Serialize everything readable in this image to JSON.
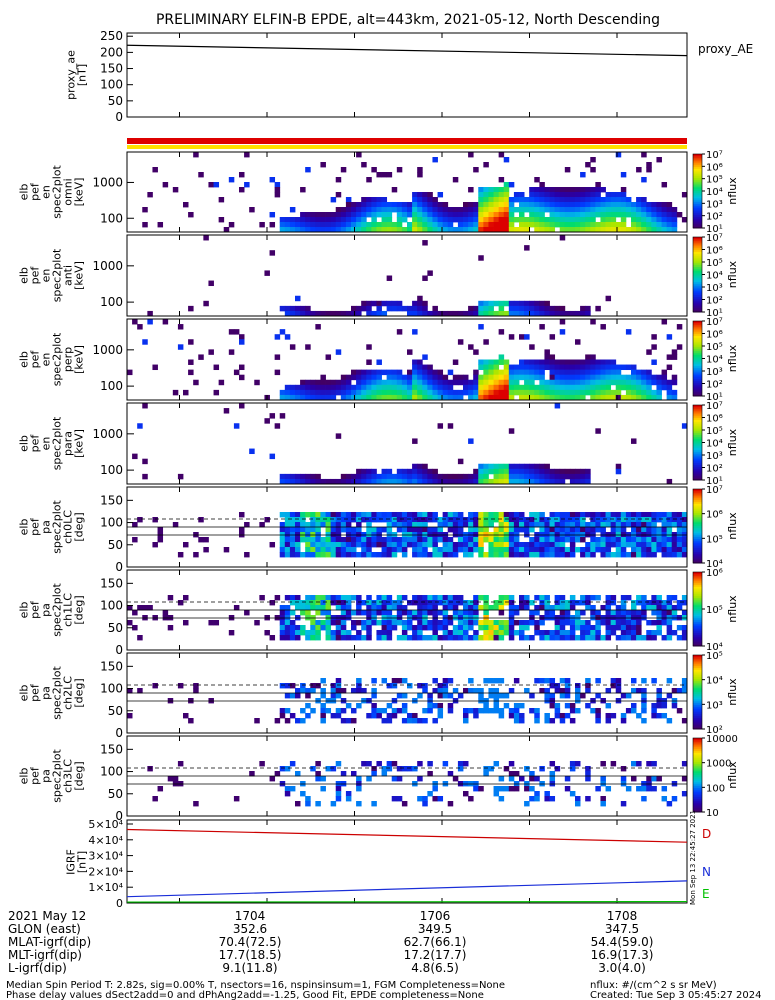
{
  "title": "PRELIMINARY ELFIN-B EPDE, alt=443km, 2021-05-12, North Descending",
  "chart_data": [
    {
      "type": "line",
      "panel": "proxy_ae",
      "ylabel": "proxy_ae\n[nT]",
      "ylim": [
        0,
        260
      ],
      "yticks": [
        "0",
        "50",
        "100",
        "150",
        "200",
        "250"
      ],
      "series": [
        {
          "name": "proxy_AE",
          "color": "#000000",
          "x": [
            1702.4,
            1708.8
          ],
          "values": [
            222,
            190
          ]
        }
      ],
      "legend_label": "proxy_AE"
    },
    {
      "type": "heatmap",
      "panel": "en1",
      "ylabel": "elb\npef\nen\nspec2plot\nomni\n[keV]",
      "yscale": "log",
      "yticks": [
        "100",
        "1000"
      ],
      "zlabel": "nflux",
      "zticks": [
        "10⁷",
        "10⁶",
        "10⁵",
        "10⁴",
        "10³",
        "10²",
        "10¹"
      ]
    },
    {
      "type": "heatmap",
      "panel": "en2",
      "ylabel": "elb\npef\nen\nspec2plot\nanti\n[keV]",
      "yscale": "log",
      "yticks": [
        "100",
        "1000"
      ],
      "zlabel": "nflux",
      "zticks": [
        "10⁷",
        "10⁶",
        "10⁵",
        "10⁴",
        "10³",
        "10²",
        "10¹"
      ]
    },
    {
      "type": "heatmap",
      "panel": "en3",
      "ylabel": "elb\npef\nen\nspec2plot\nperp\n[keV]",
      "yscale": "log",
      "yticks": [
        "100",
        "1000"
      ],
      "zlabel": "nflux",
      "zticks": [
        "10⁷",
        "10⁶",
        "10⁵",
        "10⁴",
        "10³",
        "10²",
        "10¹"
      ]
    },
    {
      "type": "heatmap",
      "panel": "en4",
      "ylabel": "elb\npef\nen\nspec2plot\npara\n[keV]",
      "yscale": "log",
      "yticks": [
        "100",
        "1000"
      ],
      "zlabel": "nflux",
      "zticks": [
        "10⁷",
        "10⁶",
        "10⁵",
        "10⁴",
        "10³",
        "10²",
        "10¹"
      ]
    },
    {
      "type": "heatmap",
      "panel": "pa0",
      "ylabel": "elb\npef\npa\nspec2plot\nch0LC\n[deg]",
      "ylim": [
        0,
        180
      ],
      "yticks": [
        "0",
        "50",
        "100",
        "150"
      ],
      "zlabel": "nflux",
      "zticks": [
        "10⁷",
        "10⁶",
        "10⁵",
        "10⁴"
      ]
    },
    {
      "type": "heatmap",
      "panel": "pa1",
      "ylabel": "elb\npef\npa\nspec2plot\nch1LC\n[deg]",
      "ylim": [
        0,
        180
      ],
      "yticks": [
        "0",
        "50",
        "100",
        "150"
      ],
      "zlabel": "nflux",
      "zticks": [
        "10⁶",
        "10⁵",
        "10⁴"
      ]
    },
    {
      "type": "heatmap",
      "panel": "pa2",
      "ylabel": "elb\npef\npa\nspec2plot\nch2LC\n[deg]",
      "ylim": [
        0,
        180
      ],
      "yticks": [
        "0",
        "50",
        "100",
        "150"
      ],
      "zlabel": "nflux",
      "zticks": [
        "10⁵",
        "10⁴",
        "10³",
        "10²"
      ]
    },
    {
      "type": "heatmap",
      "panel": "pa3",
      "ylabel": "elb\npef\npa\nspec2plot\nch3LC\n[deg]",
      "ylim": [
        0,
        180
      ],
      "yticks": [
        "0",
        "50",
        "100",
        "150"
      ],
      "zlabel": "nflux",
      "zticks": [
        "10000",
        "1000",
        "100",
        "10"
      ]
    },
    {
      "type": "line",
      "panel": "igrf",
      "ylabel": "IGRF\n[nT]",
      "ylim": [
        0,
        50000
      ],
      "yticks": [
        "0",
        "1×10⁴",
        "2×10⁴",
        "3×10⁴",
        "4×10⁴",
        "5×10⁴"
      ],
      "series": [
        {
          "name": "D",
          "color": "#cc0000",
          "x": [
            1702.4,
            1708.8
          ],
          "values": [
            46500,
            38500
          ]
        },
        {
          "name": "N",
          "color": "#1a2ed8",
          "x": [
            1702.4,
            1708.8
          ],
          "values": [
            4000,
            14000
          ]
        },
        {
          "name": "E",
          "color": "#00c000",
          "x": [
            1702.4,
            1708.8
          ],
          "values": [
            600,
            900
          ]
        }
      ],
      "side_text": "Mon Sep 13 22:45:27 2021"
    }
  ],
  "xaxis": {
    "row_labels": [
      "2021 May 12",
      "GLON (east)",
      "MLAT-igrf(dip)",
      "MLT-igrf(dip)",
      "L-igrf(dip)"
    ],
    "columns": [
      {
        "x": 1704,
        "values": [
          "1704",
          "352.6",
          "70.4(72.5)",
          "17.7(18.5)",
          "9.1(11.8)"
        ]
      },
      {
        "x": 1706,
        "values": [
          "1706",
          "349.5",
          "62.7(66.1)",
          "17.2(17.7)",
          "4.8(6.5)"
        ]
      },
      {
        "x": 1708,
        "values": [
          "1708",
          "347.5",
          "54.4(59.0)",
          "16.9(17.3)",
          "3.0(4.0)"
        ]
      }
    ],
    "range": [
      1702.4,
      1708.8
    ]
  },
  "footer": {
    "line1": "Median Spin Period T: 2.82s, sig=0.00% T, nsectors=16, nspinsinsum=1, FGM Completeness=None",
    "line2": "Phase delay values dSect2add=0 and dPhAng2add=-1.25, Good Fit, EPDE completeness=None",
    "right1": "nflux: #/(cm^2 s sr MeV)",
    "right2": "Created: Tue Sep  3 05:45:27 2024"
  },
  "colors": {
    "sci_zone": "#dd0000",
    "status_bar": "#ffe000"
  }
}
